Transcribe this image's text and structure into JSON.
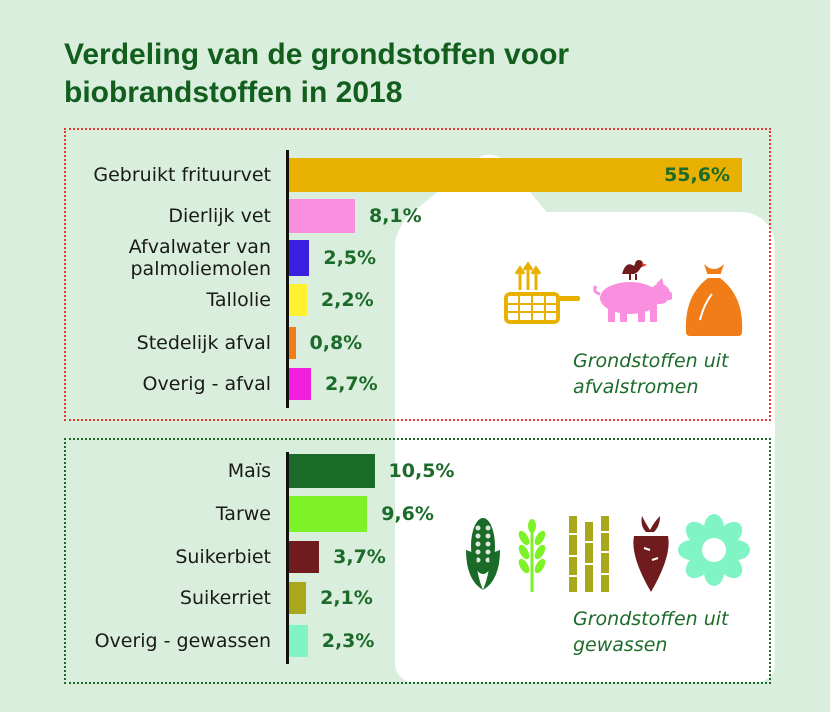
{
  "title": {
    "line1": "Verdeling van de grondstoffen voor",
    "line2": "biobrandstoffen in 2018"
  },
  "chart_data": [
    {
      "type": "bar",
      "orientation": "horizontal",
      "categories": [
        "Gebruikt frituurvet",
        "Dierlijk vet",
        "Afvalwater van\npalmoliemolen",
        "Tallolie",
        "Stedelijk afval",
        "Overig - afval"
      ],
      "values": [
        55.6,
        8.1,
        2.5,
        2.2,
        0.8,
        2.7
      ],
      "value_labels": [
        "55,6%",
        "8,1%",
        "2,5%",
        "2,2%",
        "0,8%",
        "2,7%"
      ],
      "colors": [
        "#e8b000",
        "#f98fde",
        "#3a1fe0",
        "#fff030",
        "#f07d18",
        "#ef1fdc"
      ],
      "group_label": [
        "Grondstoffen uit",
        "afvalstromen"
      ]
    },
    {
      "type": "bar",
      "orientation": "horizontal",
      "categories": [
        "Maïs",
        "Tarwe",
        "Suikerbiet",
        "Suikerriet",
        "Overig - gewassen"
      ],
      "values": [
        10.5,
        9.6,
        3.7,
        2.1,
        2.3
      ],
      "value_labels": [
        "10,5%",
        "9,6%",
        "3,7%",
        "2,1%",
        "2,3%"
      ],
      "colors": [
        "#1a6b27",
        "#7df227",
        "#701c1f",
        "#a9a81a",
        "#80f4c4"
      ],
      "group_label": [
        "Grondstoffen uit",
        "gewassen"
      ]
    }
  ],
  "icons": {
    "waste": [
      "fryer-icon",
      "pig-with-chicken-icon",
      "garbage-bag-icon"
    ],
    "crops": [
      "corn-icon",
      "wheat-icon",
      "sugarcane-icon",
      "sugar-beet-icon",
      "flower-icon"
    ]
  }
}
